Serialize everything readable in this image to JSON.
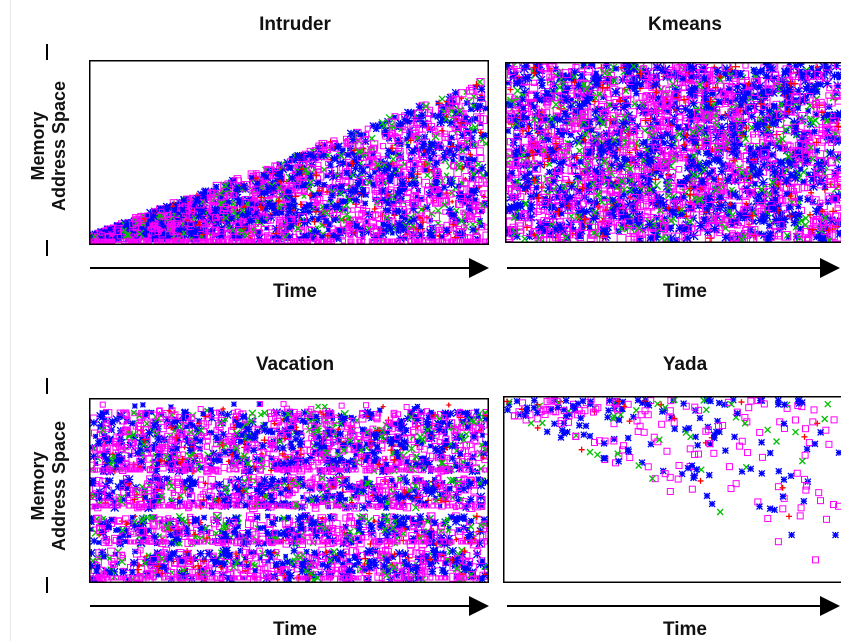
{
  "chart_data": [
    {
      "type": "scatter",
      "title": "Intruder",
      "xlabel": "Time",
      "ylabel": [
        "Memory",
        "Address Space"
      ],
      "pattern": "triangular-ramp",
      "series_colors": [
        "#ff00ff",
        "#0000ff",
        "#00c000",
        "#ff0000"
      ],
      "markers": [
        "square",
        "asterisk",
        "cross",
        "plus"
      ]
    },
    {
      "type": "scatter",
      "title": "Kmeans",
      "xlabel": "Time",
      "ylabel": [
        "Memory",
        "Address Space"
      ],
      "pattern": "dense-uniform",
      "series_colors": [
        "#ff00ff",
        "#0000ff",
        "#00c000",
        "#ff0000"
      ],
      "markers": [
        "square",
        "asterisk",
        "cross",
        "plus"
      ]
    },
    {
      "type": "scatter",
      "title": "Vacation",
      "xlabel": "Time",
      "ylabel": [
        "Memory",
        "Address Space"
      ],
      "pattern": "horizontal-bands",
      "series_colors": [
        "#ff00ff",
        "#0000ff",
        "#00c000",
        "#ff0000"
      ],
      "markers": [
        "square",
        "asterisk",
        "cross",
        "plus"
      ]
    },
    {
      "type": "scatter",
      "title": "Yada",
      "xlabel": "Time",
      "ylabel": [
        "Memory",
        "Address Space"
      ],
      "pattern": "sparse-diagonal",
      "series_colors": [
        "#ff00ff",
        "#0000ff",
        "#00c000",
        "#ff0000"
      ],
      "markers": [
        "square",
        "asterisk",
        "cross",
        "plus"
      ]
    }
  ],
  "colors": {
    "axis": "#000000",
    "frame": "#000000"
  }
}
